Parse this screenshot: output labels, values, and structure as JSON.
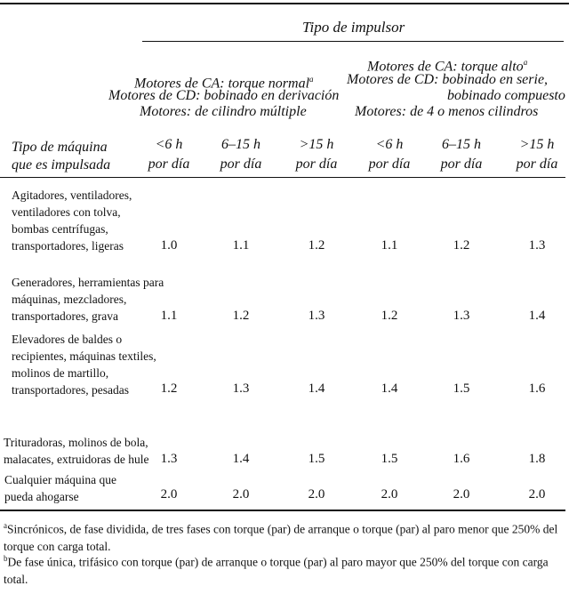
{
  "title": "Tipo de impulsor",
  "group_normal": {
    "line1": "Motores de CA: torque normal",
    "line1_sup": "a",
    "line2": "Motores de CD: bobinado en derivación",
    "line3": "Motores: de cilindro múltiple"
  },
  "group_high": {
    "line1": "Motores de CA: torque alto",
    "line1_sup": "a",
    "line2": "Motores de CD: bobinado en serie,",
    "line3": "bobinado compuesto",
    "line4": "Motores: de 4 o menos cilindros"
  },
  "machine_header": {
    "line1": "Tipo de máquina",
    "line2": "que es impulsada"
  },
  "columns": [
    {
      "line1": "<6 h",
      "line2": "por día"
    },
    {
      "line1": "6–15 h",
      "line2": "por día"
    },
    {
      "line1": ">15 h",
      "line2": "por día"
    },
    {
      "line1": "<6 h",
      "line2": "por día"
    },
    {
      "line1": "6–15 h",
      "line2": "por día"
    },
    {
      "line1": ">15 h",
      "line2": "por día"
    }
  ],
  "rows": [
    {
      "machine": "Agitadores, ventiladores, ventiladores con tolva, bombas centrífugas, transportadores, ligeras",
      "values": [
        "1.0",
        "1.1",
        "1.2",
        "1.1",
        "1.2",
        "1.3"
      ]
    },
    {
      "machine": "Generadores, herramientas para máquinas, mezcladores, transportadores, grava",
      "values": [
        "1.1",
        "1.2",
        "1.3",
        "1.2",
        "1.3",
        "1.4"
      ]
    },
    {
      "machine": "Elevadores de baldes o recipientes, máquinas textiles, molinos de martillo, transportadores, pesadas",
      "values": [
        "1.2",
        "1.3",
        "1.4",
        "1.4",
        "1.5",
        "1.6"
      ]
    },
    {
      "machine": "Trituradoras, molinos de bola, malacates, extruidoras de hule",
      "values": [
        "1.3",
        "1.4",
        "1.5",
        "1.5",
        "1.6",
        "1.8"
      ]
    },
    {
      "machine": "Cualquier máquina que pueda ahogarse",
      "values": [
        "2.0",
        "2.0",
        "2.0",
        "2.0",
        "2.0",
        "2.0"
      ]
    }
  ],
  "footnotes": [
    {
      "mark": "a",
      "text": "Sincrónicos, de fase dividida, de tres fases con torque (par) de arranque o torque (par) al paro menor que 250% del torque con carga total."
    },
    {
      "mark": "b",
      "text": "De fase única, trifásico con torque (par) de arranque o torque (par) al paro mayor que 250% del torque con carga total."
    }
  ]
}
